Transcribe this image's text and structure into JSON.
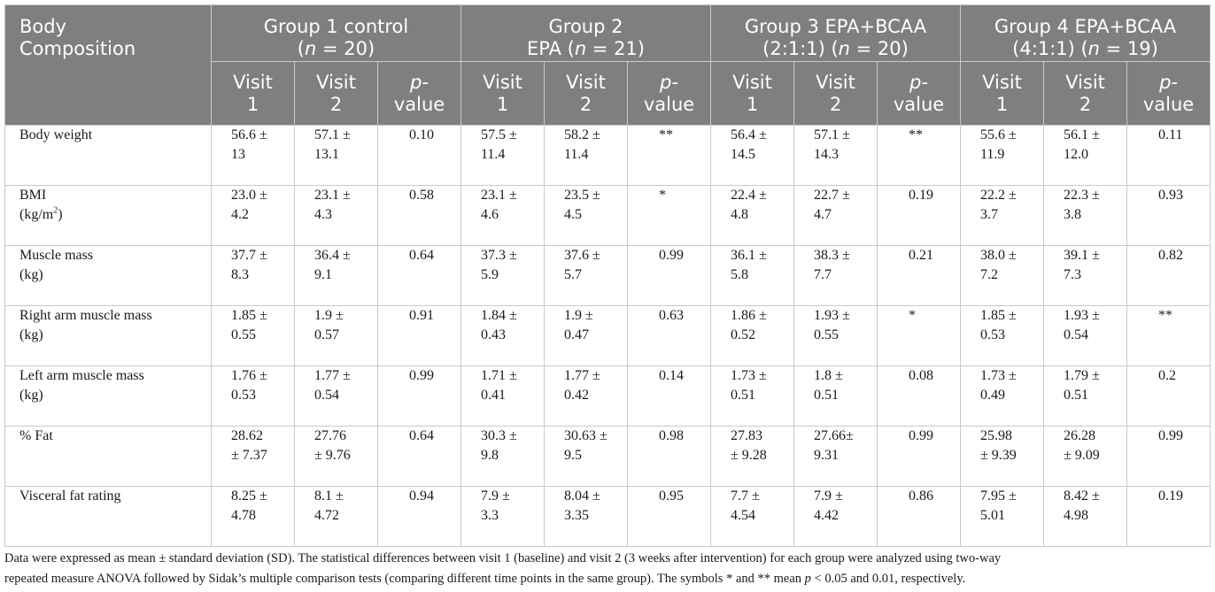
{
  "header": {
    "row_label": "Body Composition",
    "groups": [
      {
        "line1": "Group 1 control",
        "line2": "(n = 20)"
      },
      {
        "line1": "Group 2",
        "line2": "EPA (n = 21)"
      },
      {
        "line1": "Group 3 EPA+BCAA",
        "line2": "(2:1:1) (n = 20)"
      },
      {
        "line1": "Group 4 EPA+BCAA",
        "line2": "(4:1:1) (n = 19)"
      }
    ],
    "sub": {
      "v1_a": "Visit",
      "v1_b": "1",
      "v2_a": "Visit",
      "v2_b": "2",
      "p_a": "p-",
      "p_b": "value"
    }
  },
  "rows": [
    {
      "label": "Body weight",
      "label2": "",
      "cells": [
        [
          "56.6 ±",
          "13"
        ],
        [
          "57.1 ±",
          "13.1"
        ],
        [
          "0.10",
          ""
        ],
        [
          "57.5 ±",
          "11.4"
        ],
        [
          "58.2 ±",
          "11.4"
        ],
        [
          "**",
          ""
        ],
        [
          "56.4 ±",
          "14.5"
        ],
        [
          "57.1 ±",
          "14.3"
        ],
        [
          "**",
          ""
        ],
        [
          "55.6 ±",
          "11.9"
        ],
        [
          "56.1 ±",
          "12.0"
        ],
        [
          "0.11",
          ""
        ]
      ]
    },
    {
      "label": "BMI",
      "label2": "(kg/m",
      "label2_sup": "2",
      "label2_end": ")",
      "cells": [
        [
          "23.0 ±",
          "4.2"
        ],
        [
          "23.1 ±",
          "4.3"
        ],
        [
          "0.58",
          ""
        ],
        [
          "23.1 ±",
          "4.6"
        ],
        [
          "23.5 ±",
          "4.5"
        ],
        [
          "*",
          ""
        ],
        [
          "22.4 ±",
          "4.8"
        ],
        [
          "22.7 ±",
          "4.7"
        ],
        [
          "0.19",
          ""
        ],
        [
          "22.2 ±",
          "3.7"
        ],
        [
          "22.3 ±",
          "3.8"
        ],
        [
          "0.93",
          ""
        ]
      ]
    },
    {
      "label": "Muscle mass",
      "label2": "(kg)",
      "cells": [
        [
          "37.7 ±",
          "8.3"
        ],
        [
          "36.4 ±",
          "9.1"
        ],
        [
          "0.64",
          ""
        ],
        [
          "37.3 ±",
          "5.9"
        ],
        [
          "37.6 ±",
          "5.7"
        ],
        [
          "0.99",
          ""
        ],
        [
          "36.1 ±",
          "5.8"
        ],
        [
          "38.3 ±",
          "7.7"
        ],
        [
          "0.21",
          ""
        ],
        [
          "38.0 ±",
          "7.2"
        ],
        [
          "39.1 ±",
          "7.3"
        ],
        [
          "0.82",
          ""
        ]
      ]
    },
    {
      "label": "Right arm muscle mass",
      "label2": "(kg)",
      "cells": [
        [
          "1.85 ±",
          "0.55"
        ],
        [
          "1.9 ±",
          "0.57"
        ],
        [
          "0.91",
          ""
        ],
        [
          "1.84 ±",
          "0.43"
        ],
        [
          "1.9 ±",
          "0.47"
        ],
        [
          "0.63",
          ""
        ],
        [
          "1.86 ±",
          "0.52"
        ],
        [
          "1.93 ±",
          "0.55"
        ],
        [
          "*",
          ""
        ],
        [
          "1.85 ±",
          "0.53"
        ],
        [
          "1.93 ±",
          "0.54"
        ],
        [
          "**",
          ""
        ]
      ]
    },
    {
      "label": "Left arm muscle mass",
      "label2": "(kg)",
      "cells": [
        [
          "1.76 ±",
          "0.53"
        ],
        [
          "1.77 ±",
          "0.54"
        ],
        [
          "0.99",
          ""
        ],
        [
          "1.71 ±",
          "0.41"
        ],
        [
          "1.77 ±",
          "0.42"
        ],
        [
          "0.14",
          ""
        ],
        [
          "1.73 ±",
          "0.51"
        ],
        [
          "1.8 ±",
          "0.51"
        ],
        [
          "0.08",
          ""
        ],
        [
          "1.73 ±",
          "0.49"
        ],
        [
          "1.79 ±",
          "0.51"
        ],
        [
          "0.2",
          ""
        ]
      ]
    },
    {
      "label": "% Fat",
      "label2": "",
      "cells": [
        [
          "28.62",
          "± 7.37"
        ],
        [
          "27.76",
          "± 9.76"
        ],
        [
          "0.64",
          ""
        ],
        [
          "30.3 ±",
          "9.8"
        ],
        [
          "30.63 ±",
          "9.5"
        ],
        [
          "0.98",
          ""
        ],
        [
          "27.83",
          "± 9.28"
        ],
        [
          "27.66±",
          "9.31"
        ],
        [
          "0.99",
          ""
        ],
        [
          "25.98",
          "± 9.39"
        ],
        [
          "26.28",
          "± 9.09"
        ],
        [
          "0.99",
          ""
        ]
      ]
    },
    {
      "label": "Visceral fat rating",
      "label2": "",
      "cells": [
        [
          "8.25 ±",
          "4.78"
        ],
        [
          "8.1 ±",
          "4.72"
        ],
        [
          "0.94",
          ""
        ],
        [
          "7.9 ±",
          "3.3"
        ],
        [
          "8.04 ±",
          "3.35"
        ],
        [
          "0.95",
          ""
        ],
        [
          "7.7 ±",
          "4.54"
        ],
        [
          "7.9 ±",
          "4.42"
        ],
        [
          "0.86",
          ""
        ],
        [
          "7.95 ±",
          "5.01"
        ],
        [
          "8.42 ±",
          "4.98"
        ],
        [
          "0.19",
          ""
        ]
      ]
    }
  ],
  "footnote": {
    "line1": "Data were expressed as mean ± standard deviation (SD). The statistical differences between visit 1 (baseline) and visit 2 (3 weeks after intervention) for each group were analyzed using two-way",
    "line2_pre": "repeated measure ANOVA followed by Sidak’s multiple comparison tests (comparing different time points in the same group). The symbols * and ** mean ",
    "p_symbol": "p",
    "line2_post": " < 0.05 and 0.01, respectively."
  }
}
